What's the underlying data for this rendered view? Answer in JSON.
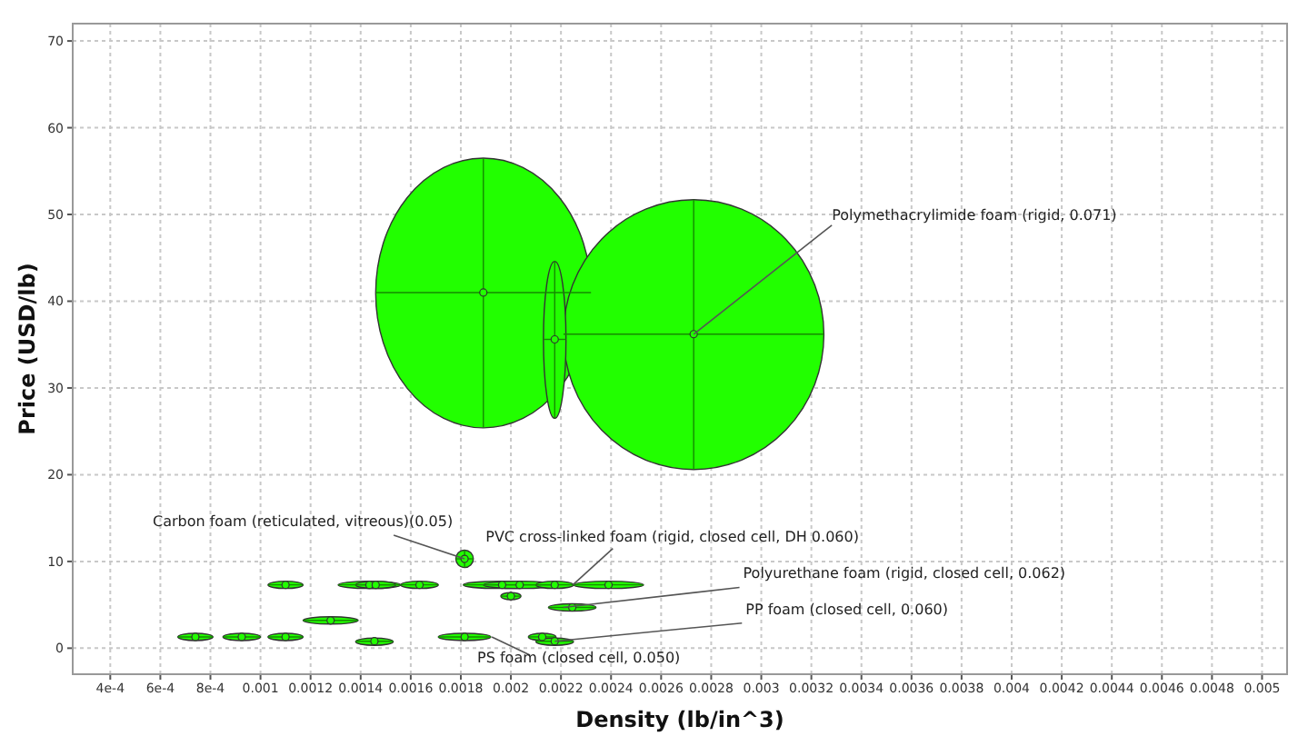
{
  "chart_data": {
    "type": "scatter",
    "xlabel": "Density (lb/in^3)",
    "ylabel": "Price (USD/lb)",
    "xlim": [
      0.00025,
      0.0051
    ],
    "ylim": [
      -3,
      72
    ],
    "xticks": [
      {
        "value": 0.0004,
        "label": "4e-4"
      },
      {
        "value": 0.0006,
        "label": "6e-4"
      },
      {
        "value": 0.0008,
        "label": "8e-4"
      },
      0.001,
      0.0012,
      0.0014,
      0.0016,
      0.0018,
      0.002,
      0.0022,
      0.0024,
      0.0026,
      0.0028,
      0.003,
      0.0032,
      0.0034,
      0.0036,
      0.0038,
      0.004,
      0.0042,
      0.0044,
      0.0046,
      0.0048,
      0.005
    ],
    "yticks": [
      0,
      10,
      20,
      30,
      40,
      50,
      60,
      70
    ],
    "grid": true,
    "marker": "circle",
    "series": [
      {
        "color": "#22ff00",
        "x": [
          0.00189,
          0.00273,
          0.002175,
          0.001815,
          0.0011,
          0.001435,
          0.00146,
          0.001635,
          0.001965,
          0.002035,
          0.002175,
          0.00239,
          0.002,
          0.002245,
          0.00128,
          0.00074,
          0.000925,
          0.0011,
          0.001815,
          0.002125,
          0.001455,
          0.002175
        ],
        "values": [
          41.0,
          36.2,
          35.6,
          10.3,
          7.3,
          7.3,
          7.3,
          7.3,
          7.3,
          7.3,
          7.3,
          7.3,
          6.0,
          4.7,
          3.2,
          1.3,
          1.3,
          1.3,
          1.3,
          1.3,
          0.8,
          0.8
        ],
        "xerrors": [
          [
            0.00146,
            0.00232
          ],
          [
            0.00221,
            0.00325
          ],
          [
            0.00213,
            0.00222
          ],
          [
            0.00178,
            0.00185
          ],
          [
            0.00103,
            0.00117
          ],
          [
            0.00131,
            0.00156
          ],
          [
            0.00138,
            0.00154
          ],
          [
            0.00156,
            0.00171
          ],
          [
            0.00181,
            0.00212
          ],
          [
            0.00189,
            0.00218
          ],
          [
            0.0021,
            0.00225
          ],
          [
            0.00225,
            0.00253
          ],
          [
            0.00196,
            0.00204
          ],
          [
            0.00215,
            0.00234
          ],
          [
            0.00117,
            0.00139
          ],
          [
            0.00067,
            0.00081
          ],
          [
            0.00085,
            0.001
          ],
          [
            0.00103,
            0.00117
          ],
          [
            0.00171,
            0.00192
          ],
          [
            0.00207,
            0.00218
          ],
          [
            0.00138,
            0.00153
          ],
          [
            0.0021,
            0.00225
          ]
        ],
        "errors": [
          [
            25.4,
            56.5
          ],
          [
            20.6,
            51.7
          ],
          [
            26.5,
            44.6
          ],
          [
            9.3,
            11.3
          ],
          [
            6.9,
            7.7
          ],
          [
            6.9,
            7.7
          ],
          [
            6.9,
            7.7
          ],
          [
            6.9,
            7.7
          ],
          [
            6.9,
            7.7
          ],
          [
            6.9,
            7.7
          ],
          [
            6.9,
            7.7
          ],
          [
            6.9,
            7.7
          ],
          [
            5.7,
            6.3
          ],
          [
            4.3,
            5.1
          ],
          [
            2.8,
            3.6
          ],
          [
            0.9,
            1.7
          ],
          [
            0.9,
            1.7
          ],
          [
            0.9,
            1.7
          ],
          [
            0.9,
            1.7
          ],
          [
            0.9,
            1.7
          ],
          [
            0.4,
            1.1
          ],
          [
            0.4,
            1.1
          ]
        ]
      }
    ],
    "annotations": [
      {
        "text": "Polymethacrylimide foam (rigid, 0.071)",
        "x": 0.00273,
        "y": 36.2
      },
      {
        "text": "Carbon foam (reticulated, vitreous)(0.05)",
        "x": 0.001815,
        "y": 10.3
      },
      {
        "text": "PVC cross-linked foam (rigid, closed cell, DH 0.060)",
        "x": 0.002175,
        "y": 7.3
      },
      {
        "text": "Polyurethane foam (rigid, closed cell, 0.062)",
        "x": 0.002245,
        "y": 4.7
      },
      {
        "text": "PP foam (closed cell, 0.060)",
        "x": 0.002175,
        "y": 0.8
      },
      {
        "text": "PS foam (closed cell, 0.050)",
        "x": 0.001815,
        "y": 1.3
      }
    ]
  }
}
